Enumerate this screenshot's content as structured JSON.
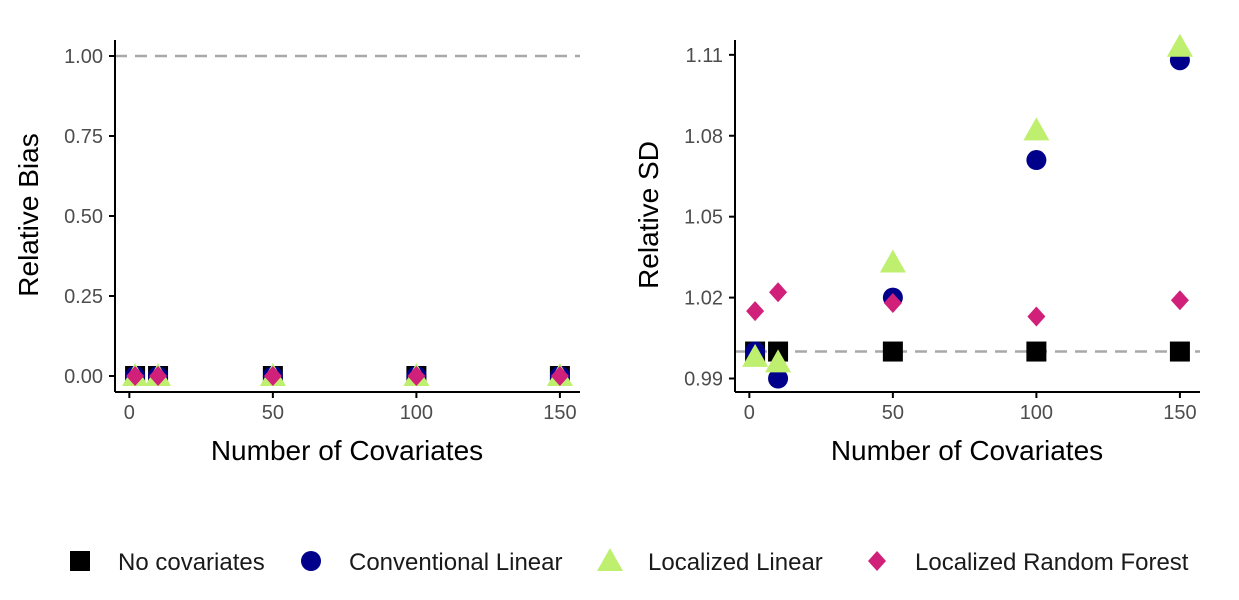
{
  "chart_data": [
    {
      "type": "scatter",
      "title": "",
      "xlabel": "Number of Covariates",
      "ylabel": "Relative Bias",
      "xlim": [
        -5,
        157
      ],
      "ylim": [
        -0.05,
        1.05
      ],
      "xticks": [
        0,
        50,
        100,
        150
      ],
      "xtick_labels": [
        "0",
        "50",
        "100",
        "150"
      ],
      "yticks": [
        0,
        0.25,
        0.5,
        0.75,
        1.0
      ],
      "ytick_labels": [
        "0.00",
        "0.25",
        "0.50",
        "0.75",
        "1.00"
      ],
      "reference_line": 1.0,
      "series": [
        {
          "name": "No covariates",
          "x": [
            2,
            10,
            50,
            100,
            150
          ],
          "y": [
            0,
            0,
            0,
            0,
            0
          ]
        },
        {
          "name": "Conventional Linear",
          "x": [
            2,
            10,
            50,
            100,
            150
          ],
          "y": [
            0,
            0,
            0,
            0,
            0
          ]
        },
        {
          "name": "Localized Linear",
          "x": [
            2,
            10,
            50,
            100,
            150
          ],
          "y": [
            0,
            0,
            0,
            0,
            0
          ]
        },
        {
          "name": "Localized Random Forest",
          "x": [
            2,
            10,
            50,
            100,
            150
          ],
          "y": [
            0,
            0,
            0,
            0,
            0
          ]
        }
      ]
    },
    {
      "type": "scatter",
      "title": "",
      "xlabel": "Number of Covariates",
      "ylabel": "Relative SD",
      "xlim": [
        -5,
        157
      ],
      "ylim": [
        0.985,
        1.1155
      ],
      "xticks": [
        0,
        50,
        100,
        150
      ],
      "xtick_labels": [
        "0",
        "50",
        "100",
        "150"
      ],
      "yticks": [
        0.99,
        1.02,
        1.05,
        1.08,
        1.11
      ],
      "ytick_labels": [
        "0.99",
        "1.02",
        "1.05",
        "1.08",
        "1.11"
      ],
      "reference_line": 1.0,
      "series": [
        {
          "name": "No covariates",
          "x": [
            2,
            10,
            50,
            100,
            150
          ],
          "y": [
            1.0,
            1.0,
            1.0,
            1.0,
            1.0
          ]
        },
        {
          "name": "Conventional Linear",
          "x": [
            2,
            10,
            50,
            100,
            150
          ],
          "y": [
            1.0,
            0.99,
            1.02,
            1.071,
            1.108
          ]
        },
        {
          "name": "Localized Linear",
          "x": [
            2,
            10,
            50,
            100,
            150
          ],
          "y": [
            0.998,
            0.996,
            1.033,
            1.082,
            1.113
          ]
        },
        {
          "name": "Localized Random Forest",
          "x": [
            2,
            10,
            50,
            100,
            150
          ],
          "y": [
            1.015,
            1.022,
            1.018,
            1.013,
            1.019
          ]
        }
      ]
    }
  ],
  "legend": {
    "items": [
      {
        "label": "No covariates",
        "shape": "square",
        "color": "#000000"
      },
      {
        "label": "Conventional Linear",
        "shape": "circle",
        "color": "#00008B"
      },
      {
        "label": "Localized Linear",
        "shape": "triangle",
        "color": "#BFEF6F"
      },
      {
        "label": "Localized Random Forest",
        "shape": "diamond",
        "color": "#D0207A"
      }
    ]
  },
  "colors": {
    "axis": "#000000",
    "tick_label": "#4d4d4d",
    "reference_line": "#A8A8A8"
  }
}
